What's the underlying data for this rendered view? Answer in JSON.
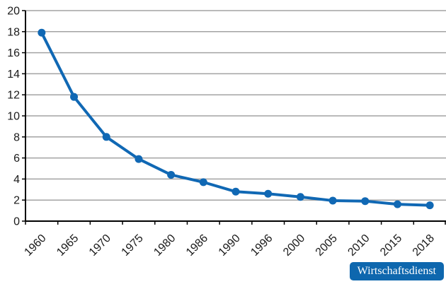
{
  "chart_data": {
    "type": "line",
    "categories": [
      "1960",
      "1965",
      "1970",
      "1975",
      "1980",
      "1986",
      "1990",
      "1996",
      "2000",
      "2005",
      "2010",
      "2015",
      "2018"
    ],
    "values": [
      17.9,
      11.8,
      8.0,
      5.9,
      4.4,
      3.7,
      2.8,
      2.6,
      2.3,
      1.95,
      1.9,
      1.6,
      1.5
    ],
    "title": "",
    "xlabel": "",
    "ylabel": "",
    "ylim": [
      0,
      20
    ],
    "ytick_step": 2,
    "grid": true,
    "legend": false,
    "marker": "circle",
    "x_label_rotation_deg": -45
  },
  "style": {
    "line_color": "#1068b4",
    "marker_color": "#1068b4",
    "gridline_color": "#a3a3a3",
    "axis_color": "#000000",
    "tick_label_color": "#1a1a1a",
    "background_color": "#ffffff"
  },
  "branding": {
    "source_label": "Wirtschaftsdienst",
    "badge_color": "#0e67ae",
    "badge_text_color": "#ffffff"
  }
}
